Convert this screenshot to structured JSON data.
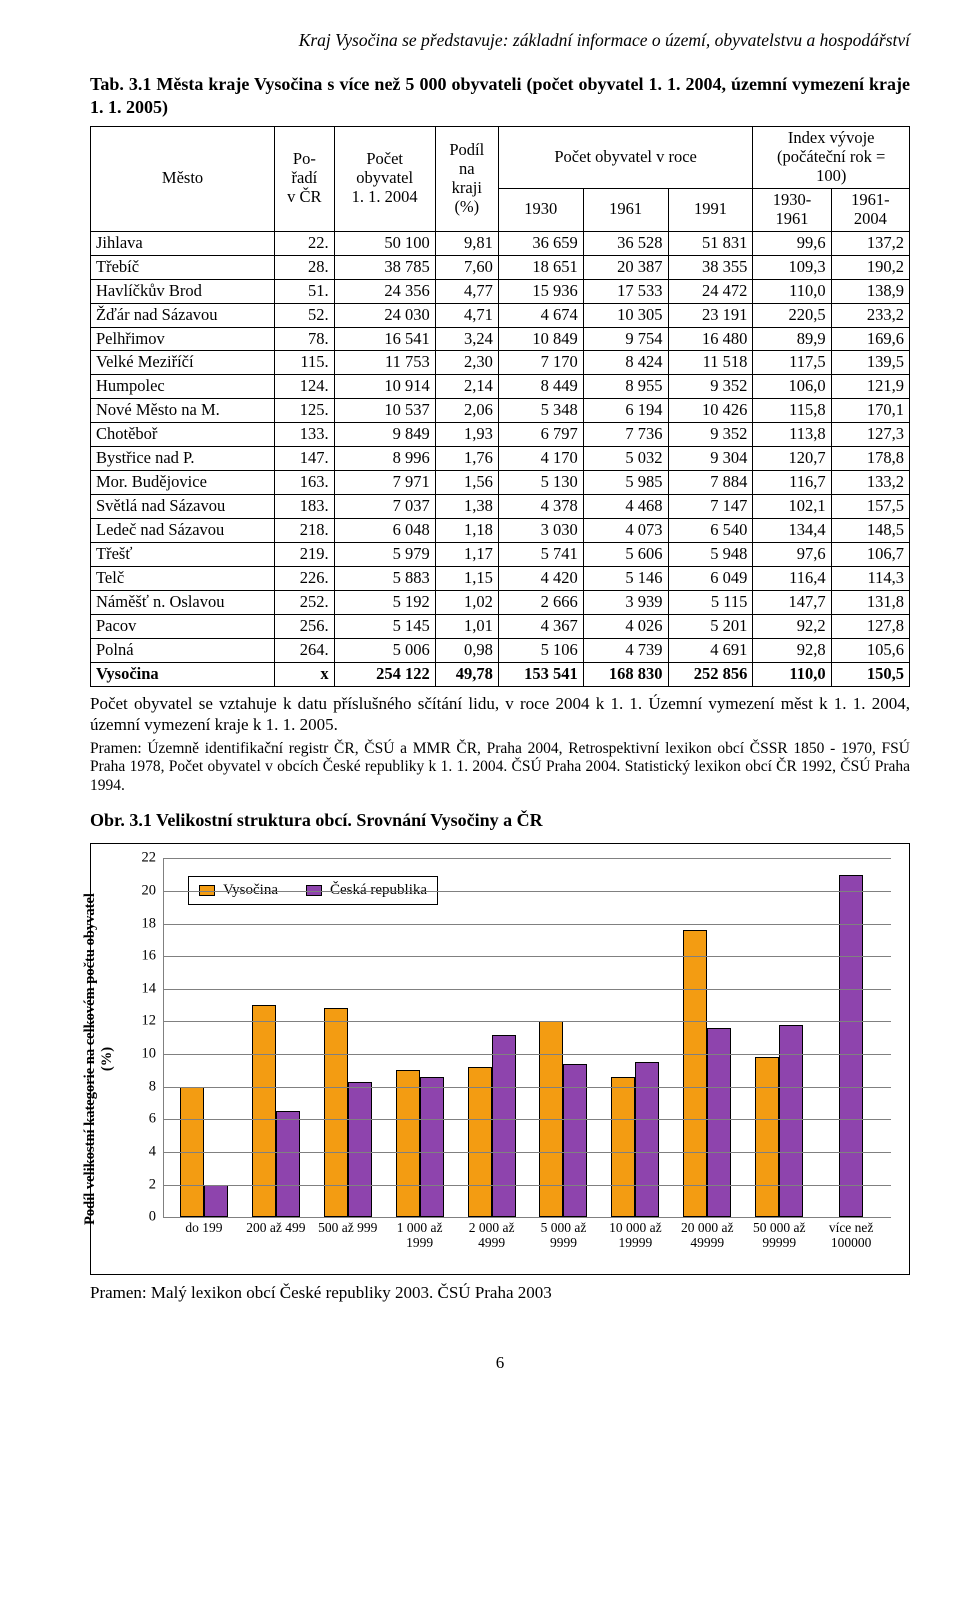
{
  "running_head": "Kraj Vysočina se představuje: základní informace o území, obyvatelstvu a hospodářství",
  "table_title": "Tab. 3.1 Města kraje Vysočina s více než 5 000 obyvateli (počet obyvatel 1. 1. 2004, územní vymezení kraje 1. 1. 2005)",
  "header": {
    "city": "Město",
    "rank": "Po-\nřadí\nv ČR",
    "pop": "Počet\nobyvatel\n1. 1. 2004",
    "share": "Podíl\nna\nkraji\n(%)",
    "pop_year_span": "Počet obyvatel v roce",
    "y1930": "1930",
    "y1961": "1961",
    "y1991": "1991",
    "index_span": "Index vývoje\n(počáteční rok =\n100)",
    "i1": "1930-\n1961",
    "i2": "1961-\n2004"
  },
  "rows": [
    {
      "city": "Jihlava",
      "rank": "22.",
      "pop": "50 100",
      "share": "9,81",
      "y1930": "36 659",
      "y1961": "36 528",
      "y1991": "51 831",
      "i1": "99,6",
      "i2": "137,2"
    },
    {
      "city": "Třebíč",
      "rank": "28.",
      "pop": "38 785",
      "share": "7,60",
      "y1930": "18 651",
      "y1961": "20 387",
      "y1991": "38 355",
      "i1": "109,3",
      "i2": "190,2"
    },
    {
      "city": "Havlíčkův Brod",
      "rank": "51.",
      "pop": "24 356",
      "share": "4,77",
      "y1930": "15 936",
      "y1961": "17 533",
      "y1991": "24 472",
      "i1": "110,0",
      "i2": "138,9"
    },
    {
      "city": "Žďár nad Sázavou",
      "rank": "52.",
      "pop": "24 030",
      "share": "4,71",
      "y1930": "4 674",
      "y1961": "10 305",
      "y1991": "23 191",
      "i1": "220,5",
      "i2": "233,2"
    },
    {
      "city": "Pelhřimov",
      "rank": "78.",
      "pop": "16 541",
      "share": "3,24",
      "y1930": "10 849",
      "y1961": "9 754",
      "y1991": "16 480",
      "i1": "89,9",
      "i2": "169,6"
    },
    {
      "city": "Velké Meziříčí",
      "rank": "115.",
      "pop": "11 753",
      "share": "2,30",
      "y1930": "7 170",
      "y1961": "8 424",
      "y1991": "11 518",
      "i1": "117,5",
      "i2": "139,5"
    },
    {
      "city": "Humpolec",
      "rank": "124.",
      "pop": "10 914",
      "share": "2,14",
      "y1930": "8 449",
      "y1961": "8 955",
      "y1991": "9 352",
      "i1": "106,0",
      "i2": "121,9"
    },
    {
      "city": "Nové Město na M.",
      "rank": "125.",
      "pop": "10 537",
      "share": "2,06",
      "y1930": "5 348",
      "y1961": "6 194",
      "y1991": "10 426",
      "i1": "115,8",
      "i2": "170,1"
    },
    {
      "city": "Chotěboř",
      "rank": "133.",
      "pop": "9 849",
      "share": "1,93",
      "y1930": "6 797",
      "y1961": "7 736",
      "y1991": "9 352",
      "i1": "113,8",
      "i2": "127,3"
    },
    {
      "city": "Bystřice nad P.",
      "rank": "147.",
      "pop": "8 996",
      "share": "1,76",
      "y1930": "4 170",
      "y1961": "5 032",
      "y1991": "9 304",
      "i1": "120,7",
      "i2": "178,8"
    },
    {
      "city": "Mor. Budějovice",
      "rank": "163.",
      "pop": "7 971",
      "share": "1,56",
      "y1930": "5 130",
      "y1961": "5 985",
      "y1991": "7 884",
      "i1": "116,7",
      "i2": "133,2"
    },
    {
      "city": "Světlá nad Sázavou",
      "rank": "183.",
      "pop": "7 037",
      "share": "1,38",
      "y1930": "4 378",
      "y1961": "4 468",
      "y1991": "7 147",
      "i1": "102,1",
      "i2": "157,5"
    },
    {
      "city": "Ledeč nad Sázavou",
      "rank": "218.",
      "pop": "6 048",
      "share": "1,18",
      "y1930": "3 030",
      "y1961": "4 073",
      "y1991": "6 540",
      "i1": "134,4",
      "i2": "148,5"
    },
    {
      "city": "Třešť",
      "rank": "219.",
      "pop": "5 979",
      "share": "1,17",
      "y1930": "5 741",
      "y1961": "5 606",
      "y1991": "5 948",
      "i1": "97,6",
      "i2": "106,7"
    },
    {
      "city": "Telč",
      "rank": "226.",
      "pop": "5 883",
      "share": "1,15",
      "y1930": "4 420",
      "y1961": "5 146",
      "y1991": "6 049",
      "i1": "116,4",
      "i2": "114,3"
    },
    {
      "city": "Náměšť n. Oslavou",
      "rank": "252.",
      "pop": "5 192",
      "share": "1,02",
      "y1930": "2 666",
      "y1961": "3 939",
      "y1991": "5 115",
      "i1": "147,7",
      "i2": "131,8"
    },
    {
      "city": "Pacov",
      "rank": "256.",
      "pop": "5 145",
      "share": "1,01",
      "y1930": "4 367",
      "y1961": "4 026",
      "y1991": "5 201",
      "i1": "92,2",
      "i2": "127,8"
    },
    {
      "city": "Polná",
      "rank": "264.",
      "pop": "5 006",
      "share": "0,98",
      "y1930": "5 106",
      "y1961": "4 739",
      "y1991": "4 691",
      "i1": "92,8",
      "i2": "105,6"
    }
  ],
  "total": {
    "city": "Vysočina",
    "rank": "x",
    "pop": "254 122",
    "share": "49,78",
    "y1930": "153 541",
    "y1961": "168 830",
    "y1991": "252 856",
    "i1": "110,0",
    "i2": "150,5"
  },
  "table_footnote": "Počet obyvatel se vztahuje k datu příslušného sčítání lidu, v roce 2004 k 1. 1. Územní vymezení měst k 1. 1. 2004, územní vymezení kraje k 1. 1. 2005.",
  "table_source": "Pramen: Územně identifikační registr ČR, ČSÚ a MMR ČR, Praha 2004, Retrospektivní lexikon obcí ČSSR 1850 - 1970, FSÚ Praha 1978, Počet obyvatel v obcích České republiky k 1. 1. 2004. ČSÚ Praha 2004. Statistický lexikon obcí ČR 1992, ČSÚ Praha 1994.",
  "fig_title": "Obr. 3.1 Velikostní struktura obcí. Srovnání Vysočiny a ČR",
  "fig_source": "Pramen: Malý lexikon obcí České republiky 2003. ČSÚ Praha 2003",
  "page_number": "6",
  "chart": {
    "type": "bar",
    "ylabel": "Podíl velikostní kategorie na celkovém počtu obyvatel\n(%)",
    "ylim": [
      0,
      22
    ],
    "ytick_step": 2,
    "series": [
      {
        "name": "Vysočina",
        "color": "#f39c12"
      },
      {
        "name": "Česká republika",
        "color": "#8e44ad"
      }
    ],
    "categories": [
      "do 199",
      "200 až 499",
      "500 až 999",
      "1 000 až\n1999",
      "2 000 až\n4999",
      "5 000 až\n9999",
      "10 000 až\n19999",
      "20 000 až\n49999",
      "50 000 až\n99999",
      "více než\n100000"
    ],
    "values": {
      "Vysočina": [
        8.0,
        13.0,
        12.8,
        9.0,
        9.2,
        12.0,
        8.6,
        17.6,
        9.8,
        0.0
      ],
      "Česká republika": [
        2.0,
        6.5,
        8.3,
        8.6,
        11.2,
        9.4,
        9.5,
        11.6,
        11.8,
        21.0
      ]
    },
    "grid_color": "#808080",
    "background": "#ffffff",
    "bar_border": "#000000"
  }
}
